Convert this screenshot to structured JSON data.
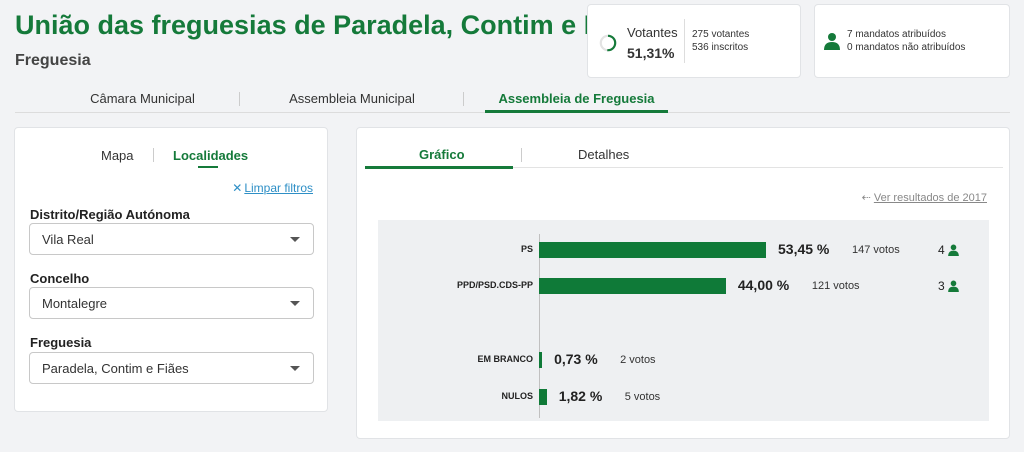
{
  "header": {
    "title": "União das freguesias de Paradela, Contim e Fiães",
    "subtitle": "Freguesia"
  },
  "turnout": {
    "label": "Votantes",
    "percent": "51,31%",
    "fraction": 0.5131,
    "voters": "275 votantes",
    "registered": "536 inscritos"
  },
  "seats_summary": {
    "assigned": "7 mandatos atribuídos",
    "unassigned": "0 mandatos não atribuídos"
  },
  "main_tabs": [
    {
      "label": "Câmara Municipal"
    },
    {
      "label": "Assembleia Municipal"
    },
    {
      "label": "Assembleia de Freguesia"
    }
  ],
  "filters": {
    "tabs": [
      {
        "label": "Mapa"
      },
      {
        "label": "Localidades"
      }
    ],
    "clear_label": "Limpar filtros",
    "fields": [
      {
        "label": "Distrito/Região Autónoma",
        "value": "Vila Real"
      },
      {
        "label": "Concelho",
        "value": "Montalegre"
      },
      {
        "label": "Freguesia",
        "value": "Paradela, Contim e Fiães"
      }
    ]
  },
  "results": {
    "tabs": [
      {
        "label": "Gráfico"
      },
      {
        "label": "Detalhes"
      }
    ],
    "previous_link": "Ver resultados de 2017"
  },
  "colors": {
    "brand": "#157a3a",
    "bar": "#0f7a38",
    "link": "#2e8fc6"
  },
  "chart_data": {
    "type": "bar",
    "orientation": "horizontal",
    "categories": [
      "PS",
      "PPD/PSD.CDS-PP",
      "EM BRANCO",
      "NULOS"
    ],
    "values": [
      53.45,
      44.0,
      0.73,
      1.82
    ],
    "value_labels": [
      "53,45 %",
      "44,00 %",
      "0,73 %",
      "1,82 %"
    ],
    "votes": [
      "147 votos",
      "121 votos",
      "2 votos",
      "5 votos"
    ],
    "seats": [
      "4",
      "3",
      null,
      null
    ],
    "xlim": [
      0,
      100
    ],
    "grid": false
  }
}
